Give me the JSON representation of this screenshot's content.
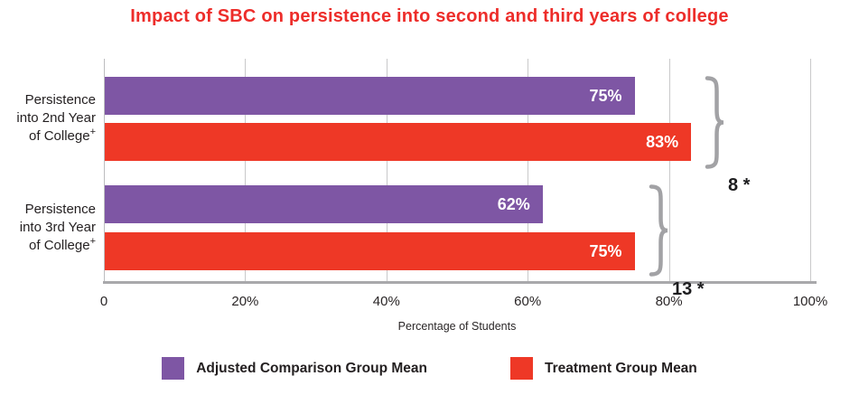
{
  "title": "Impact of SBC on persistence into second and third years of college",
  "categories": [
    {
      "lines": [
        "Persistence",
        "into 2nd Year",
        "of College"
      ],
      "sup": "+"
    },
    {
      "lines": [
        "Persistence",
        "into 3rd Year",
        "of College"
      ],
      "sup": "+"
    }
  ],
  "colors": {
    "title_red": "#ed2d2a",
    "bar_purple": "#7e56a4",
    "bar_red": "#ee3826",
    "brace_gray": "#a2a2a5",
    "axis_gray": "#a8a8ab",
    "grid_gray": "#c9c9ca",
    "text_dark": "#231f20"
  },
  "chart_data": {
    "type": "bar",
    "orientation": "horizontal",
    "title": "Impact of SBC on persistence into second and third years of college",
    "categories": [
      "Persistence into 2nd Year of College+",
      "Persistence into 3rd Year of College+"
    ],
    "series": [
      {
        "name": "Adjusted Comparison Group Mean",
        "color": "#7e56a4",
        "values": [
          75,
          62
        ],
        "labels": [
          "75%",
          "62%"
        ]
      },
      {
        "name": "Treatment Group Mean",
        "color": "#ee3826",
        "values": [
          83,
          75
        ],
        "labels": [
          "83%",
          "75%"
        ]
      }
    ],
    "difference_annotations": [
      "8 *",
      "13 *"
    ],
    "xlabel": "Percentage of Students",
    "x_ticks": [
      {
        "value": 0,
        "label": "0"
      },
      {
        "value": 20,
        "label": "20%"
      },
      {
        "value": 40,
        "label": "40%"
      },
      {
        "value": 60,
        "label": "60%"
      },
      {
        "value": 80,
        "label": "80%"
      },
      {
        "value": 100,
        "label": "100%"
      }
    ],
    "xlim": [
      0,
      100
    ],
    "grid": "vertical",
    "legend_position": "bottom"
  }
}
